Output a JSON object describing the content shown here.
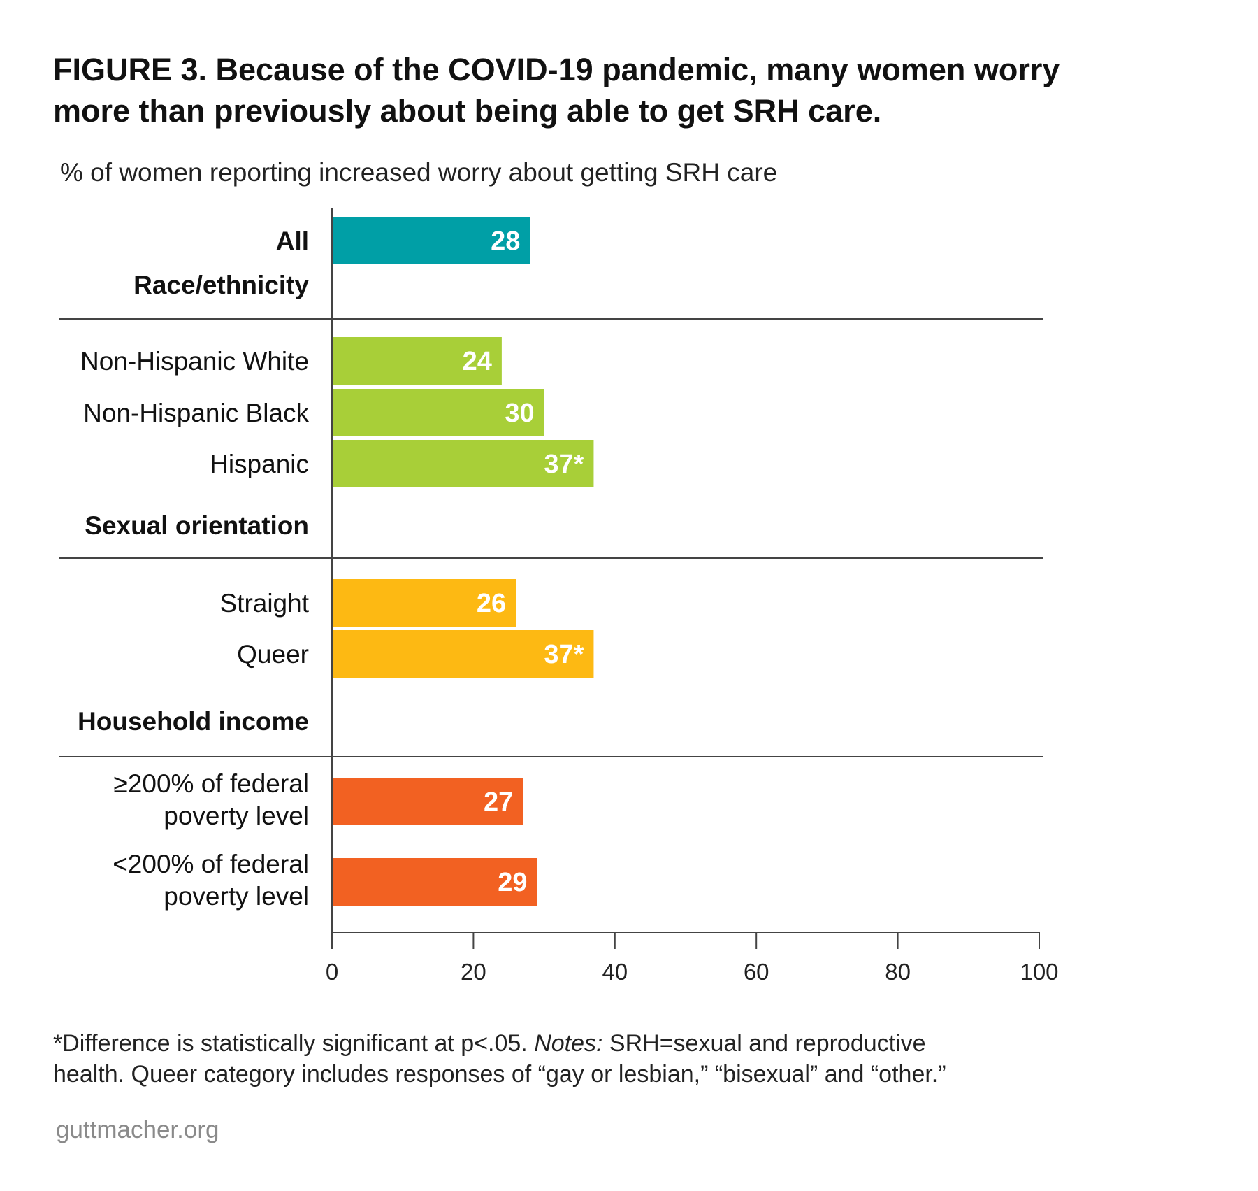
{
  "header": {
    "title_line1": "FIGURE 3. Because of the COVID-19 pandemic, many women worry",
    "title_line2": "more than previously about being able to get SRH care."
  },
  "footer": {
    "footnote_prefix": "*Difference is statistically significant at p<.05. ",
    "footnote_notes_label": "Notes:",
    "footnote_rest": " SRH=sexual and reproductive",
    "footnote_line2": "health. Queer category includes responses of “gay or lesbian,” “bisexual” and “other.”",
    "source": "guttmacher.org"
  },
  "chart_data": {
    "type": "bar",
    "orientation": "horizontal",
    "subtitle": "% of women reporting increased worry about getting SRH care",
    "xlim": [
      0,
      100
    ],
    "x_ticks": [
      "0",
      "20",
      "40",
      "60",
      "80",
      "100"
    ],
    "groups": [
      {
        "name": "",
        "color": "#009fa6",
        "bars": [
          {
            "label": "All",
            "label_bold": true,
            "value": 28,
            "value_label": "28"
          }
        ]
      },
      {
        "name": "Race/ethnicity",
        "color": "#a8cf38",
        "bars": [
          {
            "label": "Non-Hispanic White",
            "value": 24,
            "value_label": "24"
          },
          {
            "label": "Non-Hispanic Black",
            "value": 30,
            "value_label": "30"
          },
          {
            "label": "Hispanic",
            "value": 37,
            "value_label": "37*"
          }
        ]
      },
      {
        "name": "Sexual orientation",
        "color": "#fdb913",
        "bars": [
          {
            "label": "Straight",
            "value": 26,
            "value_label": "26"
          },
          {
            "label": "Queer",
            "value": 37,
            "value_label": "37*"
          }
        ]
      },
      {
        "name": "Household income",
        "color": "#f26122",
        "bars": [
          {
            "label_lines": [
              "≥200% of federal",
              "poverty level"
            ],
            "value": 27,
            "value_label": "27"
          },
          {
            "label_lines": [
              "<200% of federal",
              "poverty level"
            ],
            "value": 29,
            "value_label": "29"
          }
        ]
      }
    ]
  }
}
